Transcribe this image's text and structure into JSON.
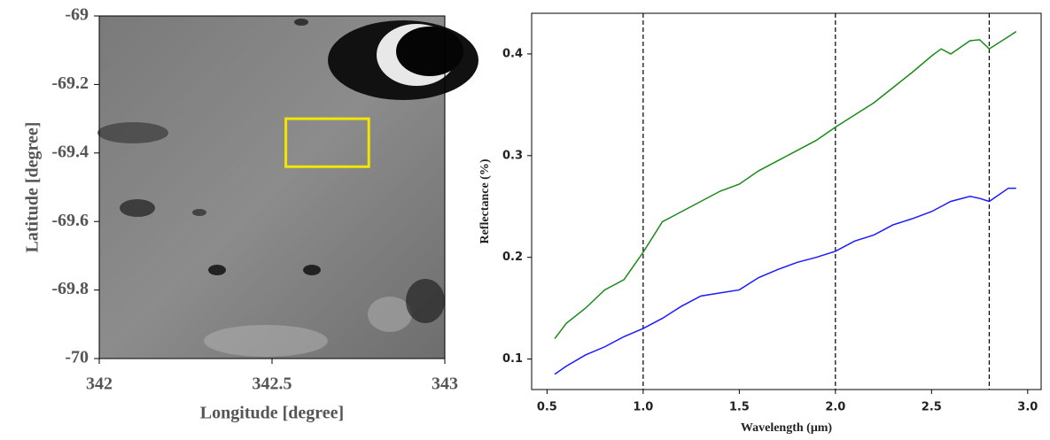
{
  "chart_data": [
    {
      "type": "image",
      "xlabel": "Longitude [degree]",
      "ylabel": "Latitude [degree]",
      "xlim": [
        342,
        343
      ],
      "xticks": [
        342,
        342.5,
        343
      ],
      "ylim": [
        -70,
        -69
      ],
      "yticks": [
        -69,
        -69.2,
        -69.4,
        -69.6,
        -69.8,
        -70
      ],
      "box": {
        "x": [
          342.54,
          342.78
        ],
        "y": [
          -69.3,
          -69.44
        ],
        "color": "#f2e600"
      }
    },
    {
      "type": "line",
      "xlabel": "Wavelength (μm)",
      "ylabel": "Reflectance (%)",
      "xlim": [
        0.42,
        3.07
      ],
      "xticks": [
        0.5,
        {
          "value": 1,
          "label": "1.0"
        },
        1.5,
        {
          "value": 2,
          "label": "2.0"
        },
        2.5,
        {
          "value": 3,
          "label": "3.0"
        }
      ],
      "ylim": [
        0.07,
        0.44
      ],
      "yticks": [
        0.1,
        0.2,
        0.3,
        0.4
      ],
      "vlines": [
        1,
        2,
        2.8
      ],
      "x": [
        0.54,
        0.6,
        0.7,
        0.8,
        0.9,
        1.0,
        1.1,
        1.2,
        1.3,
        1.4,
        1.5,
        1.6,
        1.7,
        1.8,
        1.9,
        2.0,
        2.1,
        2.2,
        2.3,
        2.4,
        2.5,
        2.55,
        2.6,
        2.7,
        2.75,
        2.8,
        2.9,
        2.94
      ],
      "series": [
        {
          "color": "#1a8a1a",
          "values": [
            0.12,
            0.135,
            0.15,
            0.168,
            0.178,
            0.205,
            0.235,
            0.245,
            0.255,
            0.265,
            0.272,
            0.285,
            0.295,
            0.305,
            0.315,
            0.328,
            0.34,
            0.352,
            0.367,
            0.382,
            0.398,
            0.405,
            0.4,
            0.413,
            0.414,
            0.405,
            0.417,
            0.422
          ]
        },
        {
          "color": "#1a1aff",
          "values": [
            0.085,
            0.093,
            0.104,
            0.112,
            0.122,
            0.13,
            0.14,
            0.152,
            0.162,
            0.165,
            0.168,
            0.18,
            0.188,
            0.195,
            0.2,
            0.206,
            0.216,
            0.222,
            0.232,
            0.238,
            0.245,
            0.25,
            0.255,
            0.26,
            0.258,
            0.255,
            0.268,
            0.268
          ]
        }
      ]
    }
  ]
}
